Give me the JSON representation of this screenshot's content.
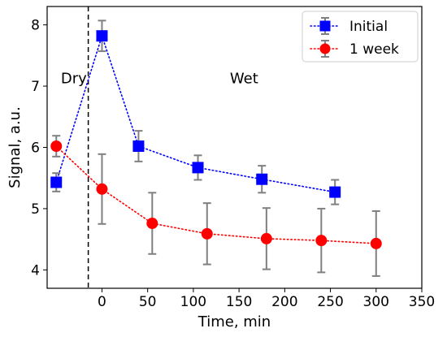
{
  "chart_data": {
    "type": "line",
    "xlabel": "Time, min",
    "ylabel": "Signal, a.u.",
    "xlim": [
      -60,
      350
    ],
    "ylim": [
      3.7,
      8.3
    ],
    "x_ticks": [
      0,
      50,
      100,
      150,
      200,
      250,
      300,
      350
    ],
    "y_ticks": [
      4,
      5,
      6,
      7,
      8
    ],
    "grid": false,
    "legend_position": "top-right",
    "annotations": [
      {
        "text": "Dry",
        "x": -45,
        "y": 7.05
      },
      {
        "text": "Wet",
        "x": 140,
        "y": 7.05
      }
    ],
    "reference_line": {
      "x": -15,
      "style": "dashed",
      "color": "#000000"
    },
    "series": [
      {
        "name": "Initial",
        "color": "#0000ff",
        "marker": "square",
        "line_style": "dotted",
        "points": [
          {
            "x": -50,
            "y": 5.43,
            "err": 0.15
          },
          {
            "x": 0,
            "y": 7.82,
            "err": 0.25
          },
          {
            "x": 40,
            "y": 6.02,
            "err": 0.25
          },
          {
            "x": 105,
            "y": 5.67,
            "err": 0.2
          },
          {
            "x": 175,
            "y": 5.48,
            "err": 0.22
          },
          {
            "x": 255,
            "y": 5.27,
            "err": 0.2
          }
        ]
      },
      {
        "name": "1 week",
        "color": "#ff0000",
        "marker": "circle",
        "line_style": "dotted",
        "points": [
          {
            "x": -50,
            "y": 6.02,
            "err": 0.17
          },
          {
            "x": 0,
            "y": 5.32,
            "err": 0.57
          },
          {
            "x": 55,
            "y": 4.76,
            "err": 0.5
          },
          {
            "x": 115,
            "y": 4.59,
            "err": 0.5
          },
          {
            "x": 180,
            "y": 4.51,
            "err": 0.5
          },
          {
            "x": 240,
            "y": 4.48,
            "err": 0.52
          },
          {
            "x": 300,
            "y": 4.43,
            "err": 0.53
          }
        ]
      }
    ]
  }
}
